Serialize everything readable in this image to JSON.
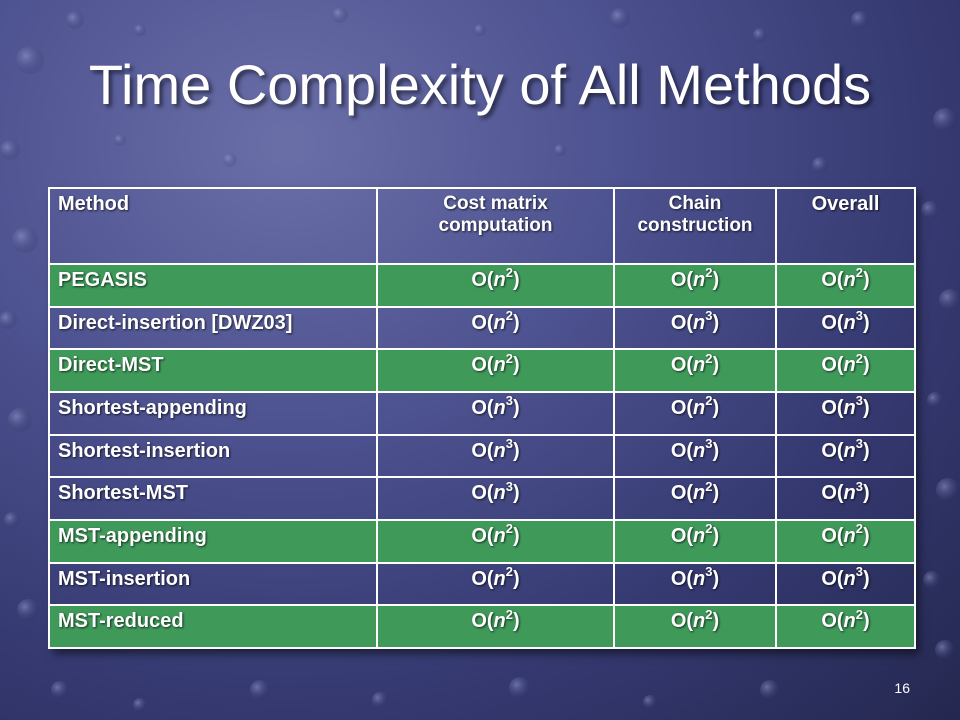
{
  "slide": {
    "title": "Time Complexity of All Methods",
    "page_number": "16"
  },
  "table": {
    "headers": [
      "Method",
      "Cost matrix computation",
      "Chain construction",
      "Overall"
    ],
    "rows": [
      {
        "method": "PEGASIS",
        "cost": [
          "O(",
          "n",
          "2",
          ")"
        ],
        "chain": [
          "O(",
          "n",
          "2",
          ")"
        ],
        "overall": [
          "O(",
          "n",
          "2",
          ")"
        ],
        "highlight": true
      },
      {
        "method": "Direct-insertion [DWZ03]",
        "cost": [
          "O(",
          "n",
          "2",
          ")"
        ],
        "chain": [
          "O(",
          "n",
          "3",
          ")"
        ],
        "overall": [
          "O(",
          "n",
          "3",
          ")"
        ],
        "highlight": false
      },
      {
        "method": "Direct-MST",
        "cost": [
          "O(",
          "n",
          "2",
          ")"
        ],
        "chain": [
          "O(",
          "n",
          "2",
          ")"
        ],
        "overall": [
          "O(",
          "n",
          "2",
          ")"
        ],
        "highlight": true
      },
      {
        "method": "Shortest-appending",
        "cost": [
          "O(",
          "n",
          "3",
          ")"
        ],
        "chain": [
          "O(",
          "n",
          "2",
          ")"
        ],
        "overall": [
          "O(",
          "n",
          "3",
          ")"
        ],
        "highlight": false
      },
      {
        "method": "Shortest-insertion",
        "cost": [
          "O(",
          "n",
          "3",
          ")"
        ],
        "chain": [
          "O(",
          "n",
          "3",
          ")"
        ],
        "overall": [
          "O(",
          "n",
          "3",
          ")"
        ],
        "highlight": false
      },
      {
        "method": "Shortest-MST",
        "cost": [
          "O(",
          "n",
          "3",
          ")"
        ],
        "chain": [
          "O(",
          "n",
          "2",
          ")"
        ],
        "overall": [
          "O(",
          "n",
          "3",
          ")"
        ],
        "highlight": false
      },
      {
        "method": "MST-appending",
        "cost": [
          "O(",
          "n",
          "2",
          ")"
        ],
        "chain": [
          "O(",
          "n",
          "2",
          ")"
        ],
        "overall": [
          "O(",
          "n",
          "2",
          ")"
        ],
        "highlight": true
      },
      {
        "method": "MST-insertion",
        "cost": [
          "O(",
          "n",
          "2",
          ")"
        ],
        "chain": [
          "O(",
          "n",
          "3",
          ")"
        ],
        "overall": [
          "O(",
          "n",
          "3",
          ")"
        ],
        "highlight": false
      },
      {
        "method": "MST-reduced",
        "cost": [
          "O(",
          "n",
          "2",
          ")"
        ],
        "chain": [
          "O(",
          "n",
          "2",
          ")"
        ],
        "overall": [
          "O(",
          "n",
          "2",
          ")"
        ],
        "highlight": true
      }
    ]
  },
  "colors": {
    "highlight_row": "#3f9a5a",
    "background": "#4d5290",
    "text": "#ffffff"
  }
}
